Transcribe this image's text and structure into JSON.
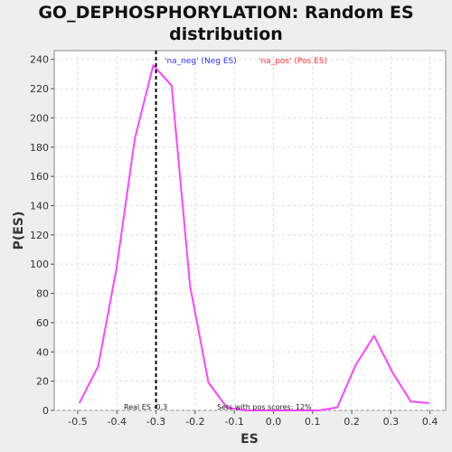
{
  "chart_data": {
    "type": "line",
    "title_lines": [
      "GO_DEPHOSPHORYLATION: Random ES",
      "distribution"
    ],
    "xlabel": "ES",
    "ylabel": "P(ES)",
    "xlim": [
      -0.56,
      0.44
    ],
    "ylim": [
      0,
      246
    ],
    "xticks": [
      -0.5,
      -0.4,
      -0.3,
      -0.2,
      -0.1,
      0.0,
      0.1,
      0.2,
      0.3,
      0.4
    ],
    "xtick_labels": [
      "-0.5",
      "-0.4",
      "-0.3",
      "-0.2",
      "-0.1",
      "0.0",
      "0.1",
      "0.2",
      "0.3",
      "0.4"
    ],
    "yticks": [
      0,
      20,
      40,
      60,
      80,
      100,
      120,
      140,
      160,
      180,
      200,
      220,
      240
    ],
    "ytick_labels": [
      "0",
      "20",
      "40",
      "60",
      "80",
      "100",
      "120",
      "140",
      "160",
      "180",
      "200",
      "220",
      "240"
    ],
    "grid": true,
    "series": [
      {
        "color": "#ff44ff",
        "x": [
          -0.496,
          -0.448,
          -0.401,
          -0.354,
          -0.307,
          -0.26,
          -0.213,
          -0.166,
          -0.119,
          -0.072,
          -0.025,
          0.022,
          0.069,
          0.116,
          0.163,
          0.21,
          0.257,
          0.304,
          0.351,
          0.398
        ],
        "y": [
          5,
          30,
          97,
          186,
          236,
          222,
          85,
          19,
          2,
          0,
          0,
          0,
          0,
          0,
          2,
          31,
          51,
          26,
          6,
          5
        ]
      }
    ],
    "legend": [
      {
        "text": "'na_neg' (Neg ES)",
        "color": "#3333ff"
      },
      {
        "text": "'na_pos' (Pos ES)",
        "color": "#ff3333"
      }
    ],
    "real_es": -0.3,
    "annotations": {
      "real_es_label": "Real ES -0.3",
      "pos_sets_label": "Sets with pos scores: 12%"
    }
  }
}
